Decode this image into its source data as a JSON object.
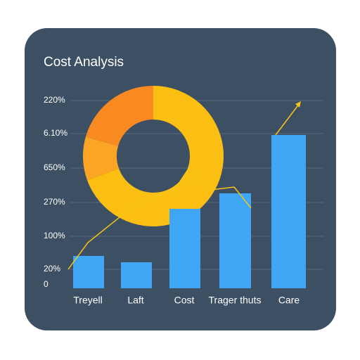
{
  "card": {
    "title": "Cost Analysis",
    "axis_labels": [
      "220%",
      "6.10%",
      "650%",
      "270%",
      "100%",
      "20%",
      "0"
    ],
    "categories": [
      "Treyell",
      "Laft",
      "Cost",
      "Trager thuts",
      "Care"
    ]
  }
}
